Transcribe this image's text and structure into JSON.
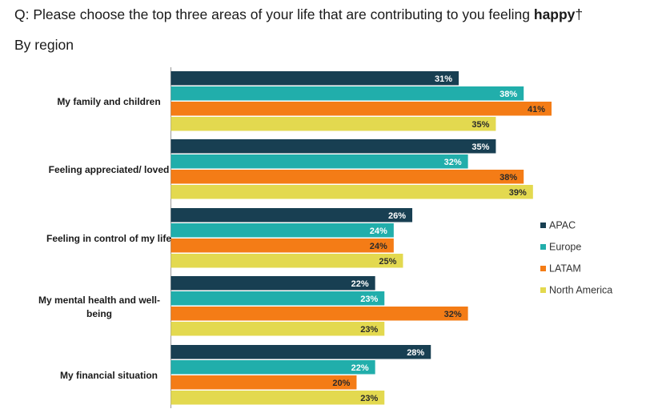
{
  "header": {
    "question_prefix": "Q: Please choose the top three areas of your life that are contributing to you feeling ",
    "question_emphasis": "happy",
    "question_suffix": "†",
    "subtitle": "By region"
  },
  "colors": {
    "APAC": "#183f52",
    "Europe": "#21aeab",
    "LATAM": "#f47c16",
    "North America": "#e3d94f"
  },
  "chart_data": {
    "type": "bar",
    "orientation": "horizontal",
    "categories": [
      "My family and children",
      "Feeling appreciated/ loved",
      "Feeling in control of my life",
      "My mental health and well-being",
      "My financial situation"
    ],
    "series": [
      {
        "name": "APAC",
        "values": [
          31,
          35,
          26,
          22,
          28
        ]
      },
      {
        "name": "Europe",
        "values": [
          38,
          32,
          24,
          23,
          22
        ]
      },
      {
        "name": "LATAM",
        "values": [
          41,
          38,
          24,
          32,
          20
        ]
      },
      {
        "name": "North America",
        "values": [
          35,
          39,
          25,
          23,
          23
        ]
      }
    ],
    "value_suffix": "%",
    "xlim": [
      0,
      41
    ],
    "grid": false,
    "legend_position": "right"
  }
}
